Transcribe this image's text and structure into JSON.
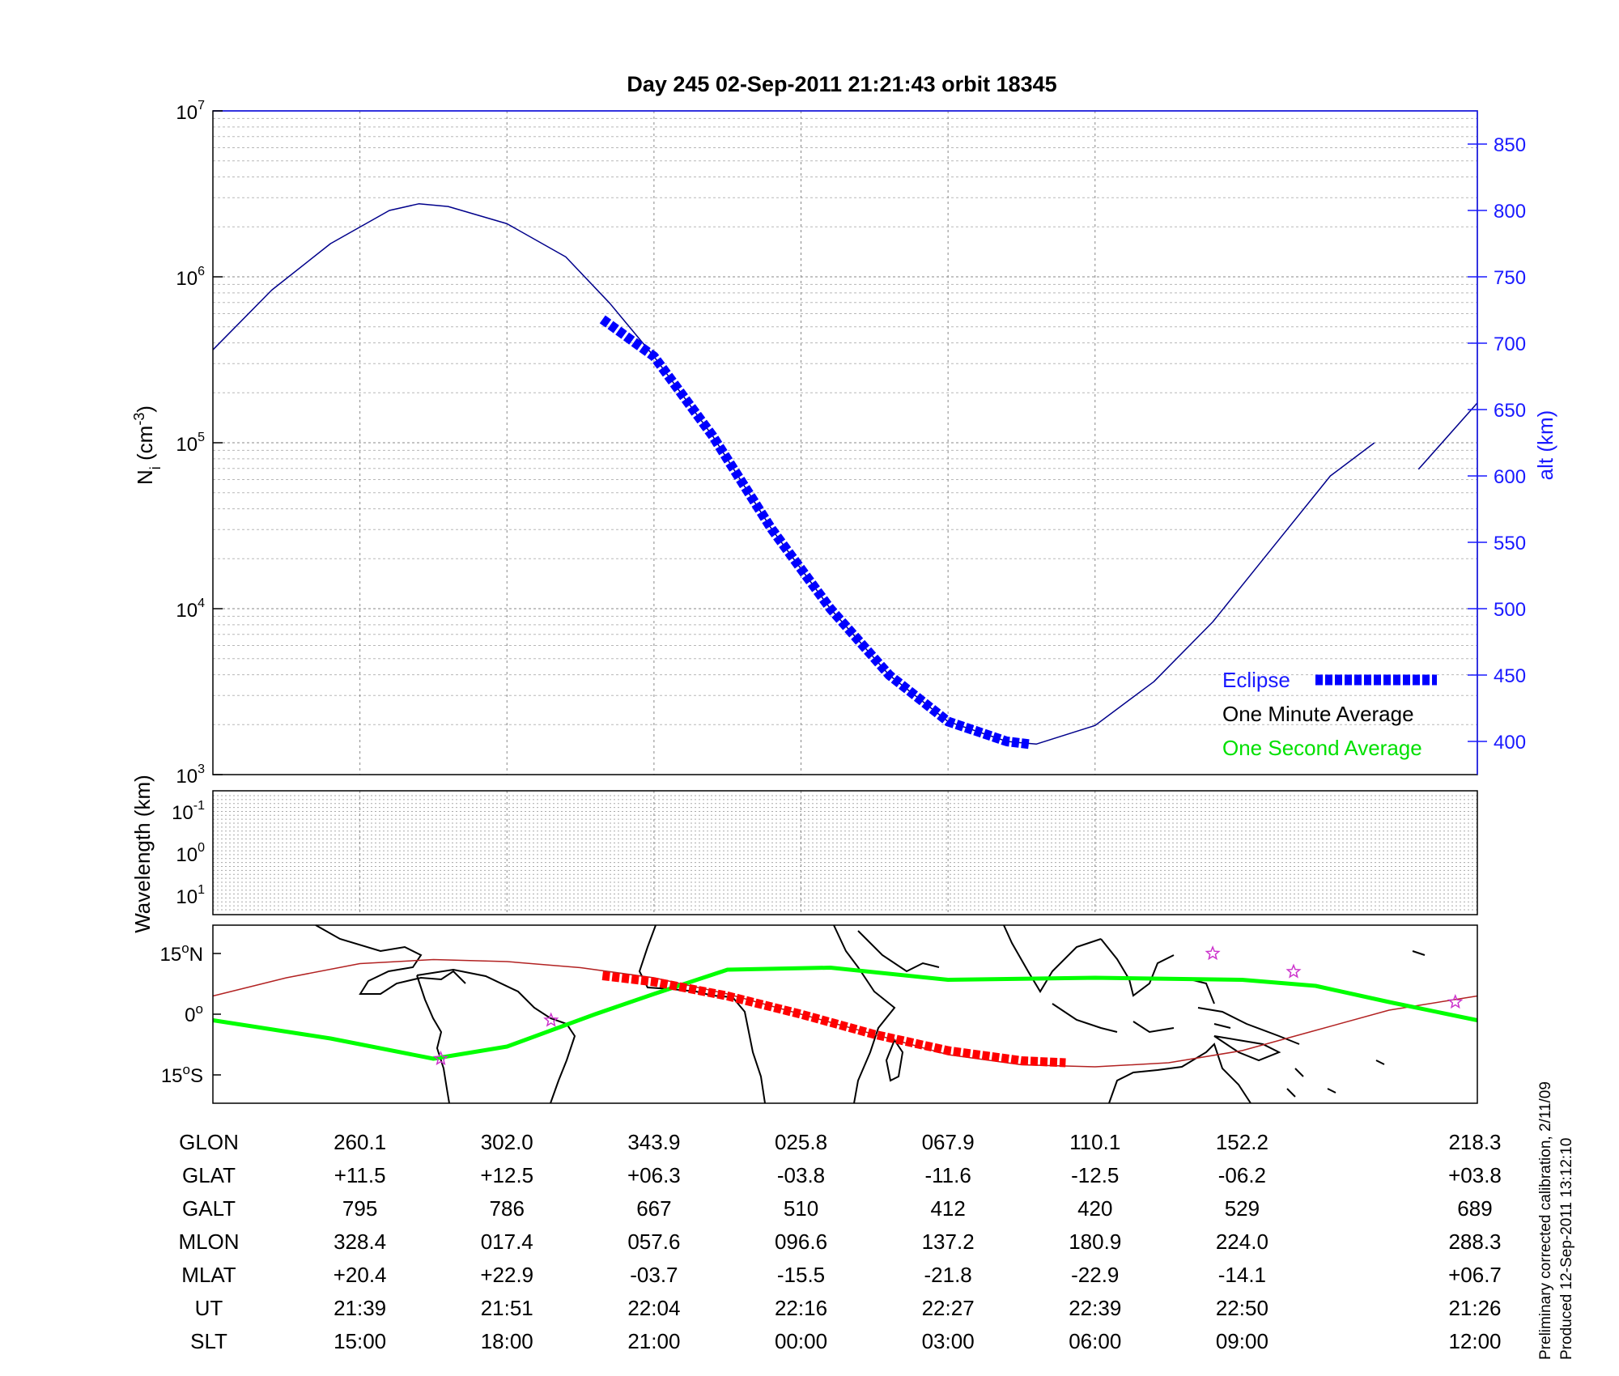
{
  "chart_data": [
    {
      "type": "line",
      "title": "Day 245  02-Sep-2011 21:21:43   orbit 18345",
      "ylabel": "N",
      "ylabel_sub": "i",
      "ylabel_unit": "(cm",
      "ylabel_exp": "-3",
      "ylabel_close": ")",
      "y_scale": "log",
      "ylim": [
        1000,
        10000000
      ],
      "yticks": [
        {
          "base": "10",
          "exp": "3",
          "v": 1000
        },
        {
          "base": "10",
          "exp": "4",
          "v": 10000
        },
        {
          "base": "10",
          "exp": "5",
          "v": 100000
        },
        {
          "base": "10",
          "exp": "6",
          "v": 1000000
        },
        {
          "base": "10",
          "exp": "7",
          "v": 10000000
        }
      ],
      "y2label": "alt (km)",
      "y2lim": [
        375,
        875
      ],
      "y2ticks": [
        400,
        450,
        500,
        550,
        600,
        650,
        700,
        750,
        800,
        850
      ],
      "x_index_range": [
        0,
        8.6
      ],
      "grid": true,
      "legend_placement": "bottom-right",
      "legend": [
        {
          "label": "Eclipse",
          "color": "#0000ff",
          "style": "thick-dashed"
        },
        {
          "label": "One Minute Average",
          "color": "#000000"
        },
        {
          "label": "One Second Average",
          "color": "#00ff00"
        }
      ],
      "series": [
        {
          "role": "altitude",
          "color": "#00008b",
          "points": [
            [
              0,
              695
            ],
            [
              0.4,
              740
            ],
            [
              0.8,
              775
            ],
            [
              1.2,
              800
            ],
            [
              1.4,
              805
            ],
            [
              1.6,
              803
            ],
            [
              2.0,
              790
            ],
            [
              2.4,
              765
            ],
            [
              2.7,
              730
            ],
            [
              3.0,
              690
            ],
            [
              3.4,
              630
            ],
            [
              3.8,
              560
            ],
            [
              4.2,
              500
            ],
            [
              4.6,
              450
            ],
            [
              5.0,
              415
            ],
            [
              5.4,
              400
            ],
            [
              5.6,
              398
            ],
            [
              6.0,
              412
            ],
            [
              6.4,
              445
            ],
            [
              6.8,
              490
            ],
            [
              7.2,
              545
            ],
            [
              7.6,
              600
            ],
            [
              7.9,
              625
            ]
          ]
        },
        {
          "role": "altitude",
          "color": "#00008b",
          "points": [
            [
              8.2,
              605
            ],
            [
              8.6,
              655
            ]
          ]
        },
        {
          "role": "eclipse",
          "color": "#0000ff",
          "points": [
            [
              2.65,
              718
            ],
            [
              3.0,
              690
            ],
            [
              3.4,
              630
            ],
            [
              3.8,
              560
            ],
            [
              4.2,
              500
            ],
            [
              4.6,
              450
            ],
            [
              5.0,
              415
            ],
            [
              5.4,
              400
            ],
            [
              5.55,
              398
            ]
          ]
        }
      ]
    },
    {
      "type": "line",
      "ylabel": "Wavelength (km)",
      "yticks": [
        {
          "base": "10",
          "exp": "-1"
        },
        {
          "base": "10",
          "exp": "0"
        },
        {
          "base": "10",
          "exp": "1"
        }
      ],
      "grid": true
    },
    {
      "type": "line",
      "ylim": [
        -22,
        22
      ],
      "yticks": [
        {
          "label": "15",
          "deg": "o",
          "hem": "N",
          "v": 15
        },
        {
          "label": "0",
          "deg": "o",
          "hem": "",
          "v": 0
        },
        {
          "label": "15",
          "deg": "o",
          "hem": "S",
          "v": -15
        }
      ],
      "series": [
        {
          "role": "magnetic-equator",
          "color": "#b22222",
          "points": [
            [
              0,
              4.5
            ],
            [
              0.5,
              9
            ],
            [
              1,
              12.5
            ],
            [
              1.5,
              13.5
            ],
            [
              2,
              13
            ],
            [
              2.5,
              11.5
            ],
            [
              3,
              9
            ],
            [
              3.5,
              5
            ],
            [
              4,
              0
            ],
            [
              4.5,
              -5
            ],
            [
              5,
              -10
            ],
            [
              5.5,
              -12.5
            ],
            [
              6,
              -13
            ],
            [
              6.5,
              -12
            ],
            [
              7,
              -9
            ],
            [
              7.5,
              -4
            ],
            [
              8,
              1
            ],
            [
              8.6,
              4.5
            ]
          ]
        },
        {
          "role": "ground-track",
          "color": "#00ff00",
          "points": [
            [
              0,
              -1.5
            ],
            [
              0.8,
              -6
            ],
            [
              1.5,
              -11
            ],
            [
              2.0,
              -8
            ],
            [
              2.6,
              0
            ],
            [
              3.0,
              5
            ],
            [
              3.5,
              11
            ],
            [
              4.2,
              11.5
            ],
            [
              5,
              8.5
            ],
            [
              6,
              9
            ],
            [
              7,
              8.5
            ],
            [
              7.5,
              7
            ],
            [
              8,
              3
            ],
            [
              8.6,
              -1.5
            ]
          ]
        },
        {
          "role": "ground-track-eclipse",
          "color": "#ff0000",
          "points": [
            [
              2.65,
              9.5
            ],
            [
              3.0,
              8
            ],
            [
              3.5,
              4.5
            ],
            [
              4.0,
              0
            ],
            [
              4.5,
              -5
            ],
            [
              5.0,
              -9
            ],
            [
              5.5,
              -11.5
            ],
            [
              5.8,
              -12
            ]
          ]
        }
      ],
      "stars": [
        [
          1.55,
          -11
        ],
        [
          2.3,
          -1.5
        ],
        [
          6.8,
          15
        ],
        [
          7.35,
          10.5
        ],
        [
          8.45,
          3
        ]
      ]
    }
  ],
  "table": {
    "row_labels": [
      "GLON",
      "GLAT",
      "GALT",
      "MLON",
      "MLAT",
      "UT",
      "SLT"
    ],
    "columns": [
      [
        "260.1",
        "+11.5",
        "795",
        "328.4",
        "+20.4",
        "21:39",
        "15:00"
      ],
      [
        "302.0",
        "+12.5",
        "786",
        "017.4",
        "+22.9",
        "21:51",
        "18:00"
      ],
      [
        "343.9",
        "+06.3",
        "667",
        "057.6",
        "-03.7",
        "22:04",
        "21:00"
      ],
      [
        "025.8",
        "-03.8",
        "510",
        "096.6",
        "-15.5",
        "22:16",
        "00:00"
      ],
      [
        "067.9",
        "-11.6",
        "412",
        "137.2",
        "-21.8",
        "22:27",
        "03:00"
      ],
      [
        "110.1",
        "-12.5",
        "420",
        "180.9",
        "-22.9",
        "22:39",
        "06:00"
      ],
      [
        "152.2",
        "-06.2",
        "529",
        "224.0",
        "-14.1",
        "22:50",
        "09:00"
      ],
      [
        "218.3",
        "+03.8",
        "689",
        "288.3",
        "+06.7",
        "21:26",
        "12:00"
      ]
    ]
  },
  "footer": {
    "line1": "Preliminary corrected calibration, 2/11/09",
    "line2": "Produced 12-Sep-2011 13:12:10"
  }
}
